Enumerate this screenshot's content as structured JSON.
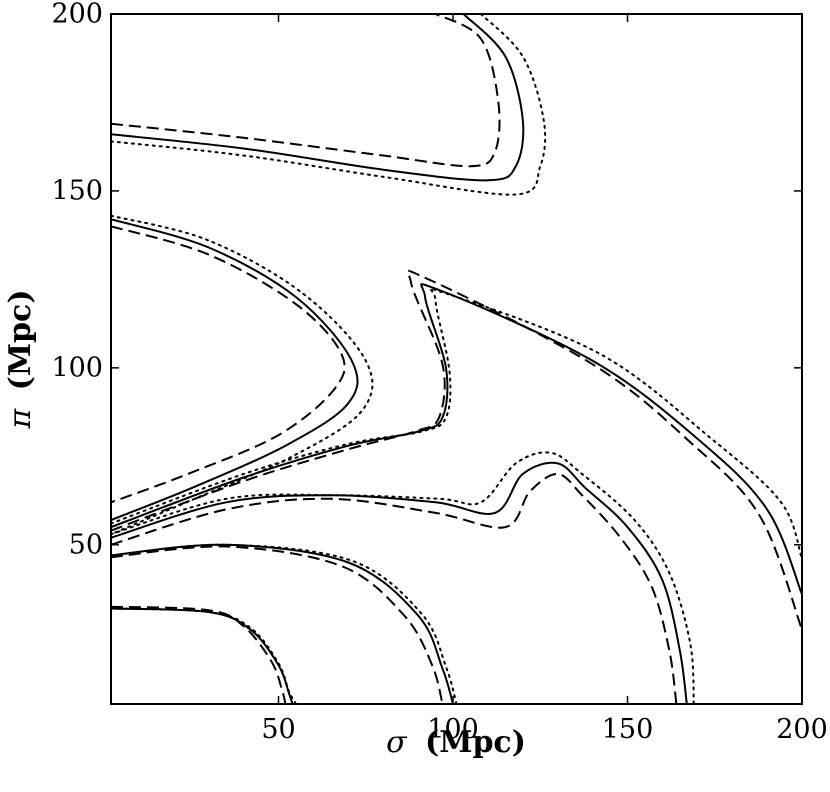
{
  "chart_data": {
    "type": "contour",
    "xlabel_symbol": "σ",
    "xlabel_rest": "(Mpc)",
    "ylabel_symbol": "π",
    "ylabel_rest": "(Mpc)",
    "xlim": [
      2,
      200
    ],
    "ylim": [
      5,
      200
    ],
    "x_ticks": [
      50,
      100,
      150,
      200
    ],
    "y_ticks": [
      50,
      100,
      150,
      200
    ],
    "x_tick_labels": [
      "50",
      "100",
      "150",
      "200"
    ],
    "y_tick_labels": [
      "50",
      "100",
      "150",
      "200"
    ],
    "grid": false,
    "line_color": "#000000",
    "series": [
      {
        "style": "solid",
        "curves": [
          [
            [
              2,
              32
            ],
            [
              30,
              31
            ],
            [
              42,
              26
            ],
            [
              50,
              16
            ],
            [
              53,
              8
            ],
            [
              54,
              5
            ]
          ],
          [
            [
              2,
              47
            ],
            [
              35,
              50
            ],
            [
              70,
              45
            ],
            [
              90,
              30
            ],
            [
              97,
              15
            ],
            [
              100,
              5
            ]
          ],
          [
            [
              2,
              166
            ],
            [
              40,
              162
            ],
            [
              80,
              156
            ],
            [
              110,
              153
            ],
            [
              118,
              157
            ],
            [
              120,
              170
            ],
            [
              115,
              188
            ],
            [
              103,
              200
            ]
          ],
          [
            [
              2,
              142
            ],
            [
              30,
              134
            ],
            [
              55,
              120
            ],
            [
              71,
              102
            ],
            [
              70,
              90
            ],
            [
              52,
              78
            ],
            [
              25,
              66
            ],
            [
              2,
              57
            ]
          ],
          [
            [
              2,
              55
            ],
            [
              40,
              69
            ],
            [
              70,
              78
            ],
            [
              90,
              82
            ],
            [
              97,
              86
            ],
            [
              98,
              100
            ],
            [
              92,
              120
            ],
            [
              96,
              122
            ],
            [
              140,
              102
            ],
            [
              170,
              80
            ],
            [
              190,
              60
            ],
            [
              200,
              36
            ]
          ],
          [
            [
              2,
              52
            ],
            [
              35,
              62
            ],
            [
              65,
              64
            ],
            [
              95,
              62
            ],
            [
              112,
              59
            ],
            [
              120,
              70
            ],
            [
              130,
              73
            ],
            [
              138,
              66
            ],
            [
              150,
              55
            ],
            [
              160,
              40
            ],
            [
              165,
              20
            ],
            [
              167,
              5
            ]
          ]
        ]
      },
      {
        "style": "dashed",
        "curves": [
          [
            [
              2,
              32.5
            ],
            [
              30,
              31.5
            ],
            [
              40,
              27
            ],
            [
              48,
              17
            ],
            [
              51,
              9
            ],
            [
              52,
              5
            ]
          ],
          [
            [
              2,
              46.5
            ],
            [
              35,
              49.5
            ],
            [
              68,
              44
            ],
            [
              86,
              30
            ],
            [
              94,
              16
            ],
            [
              97,
              5
            ]
          ],
          [
            [
              2,
              169
            ],
            [
              40,
              165
            ],
            [
              80,
              160
            ],
            [
              105,
              157
            ],
            [
              112,
              161
            ],
            [
              113,
              175
            ],
            [
              108,
              193
            ],
            [
              95,
              200
            ]
          ],
          [
            [
              2,
              140
            ],
            [
              30,
              132
            ],
            [
              55,
              118
            ],
            [
              68,
              104
            ],
            [
              66,
              94
            ],
            [
              50,
              81
            ],
            [
              24,
              70
            ],
            [
              2,
              62
            ]
          ],
          [
            [
              2,
              54
            ],
            [
              40,
              68
            ],
            [
              70,
              77
            ],
            [
              89,
              82
            ],
            [
              96,
              86
            ],
            [
              97,
              101
            ],
            [
              88,
              124
            ],
            [
              93,
              125
            ],
            [
              140,
              101
            ],
            [
              168,
              79
            ],
            [
              188,
              58
            ],
            [
              200,
              26
            ]
          ],
          [
            [
              2,
              50
            ],
            [
              35,
              60
            ],
            [
              65,
              63
            ],
            [
              95,
              59
            ],
            [
              115,
              55
            ],
            [
              122,
              65
            ],
            [
              130,
              70
            ],
            [
              137,
              64
            ],
            [
              148,
              52
            ],
            [
              157,
              38
            ],
            [
              162,
              20
            ],
            [
              164,
              5
            ]
          ]
        ]
      },
      {
        "style": "dotted",
        "curves": [
          [
            [
              2,
              32
            ],
            [
              30,
              31
            ],
            [
              42,
              26.5
            ],
            [
              50,
              16.5
            ],
            [
              53,
              8.5
            ],
            [
              55,
              5
            ]
          ],
          [
            [
              2,
              47
            ],
            [
              35,
              50
            ],
            [
              71,
              45.5
            ],
            [
              91,
              30.5
            ],
            [
              98,
              15.5
            ],
            [
              101,
              5
            ]
          ],
          [
            [
              2,
              164
            ],
            [
              40,
              160
            ],
            [
              80,
              154
            ],
            [
              118,
              149
            ],
            [
              125,
              157
            ],
            [
              126,
              170
            ],
            [
              120,
              188
            ],
            [
              108,
              200
            ]
          ],
          [
            [
              2,
              143
            ],
            [
              30,
              136
            ],
            [
              57,
              121
            ],
            [
              75,
              102
            ],
            [
              74,
              88
            ],
            [
              54,
              75
            ],
            [
              26,
              63
            ],
            [
              2,
              53
            ]
          ],
          [
            [
              2,
              56
            ],
            [
              40,
              70
            ],
            [
              70,
              78.5
            ],
            [
              91,
              82
            ],
            [
              98,
              86
            ],
            [
              99,
              99
            ],
            [
              95,
              119
            ],
            [
              98,
              121
            ],
            [
              142,
              104
            ],
            [
              174,
              80
            ],
            [
              194,
              62
            ],
            [
              200,
              46
            ]
          ],
          [
            [
              2,
              53
            ],
            [
              35,
              63
            ],
            [
              66,
              64
            ],
            [
              96,
              63
            ],
            [
              108,
              62
            ],
            [
              118,
              73
            ],
            [
              128,
              76
            ],
            [
              137,
              70
            ],
            [
              152,
              57
            ],
            [
              162,
              42
            ],
            [
              168,
              22
            ],
            [
              169,
              5
            ]
          ]
        ]
      }
    ]
  }
}
